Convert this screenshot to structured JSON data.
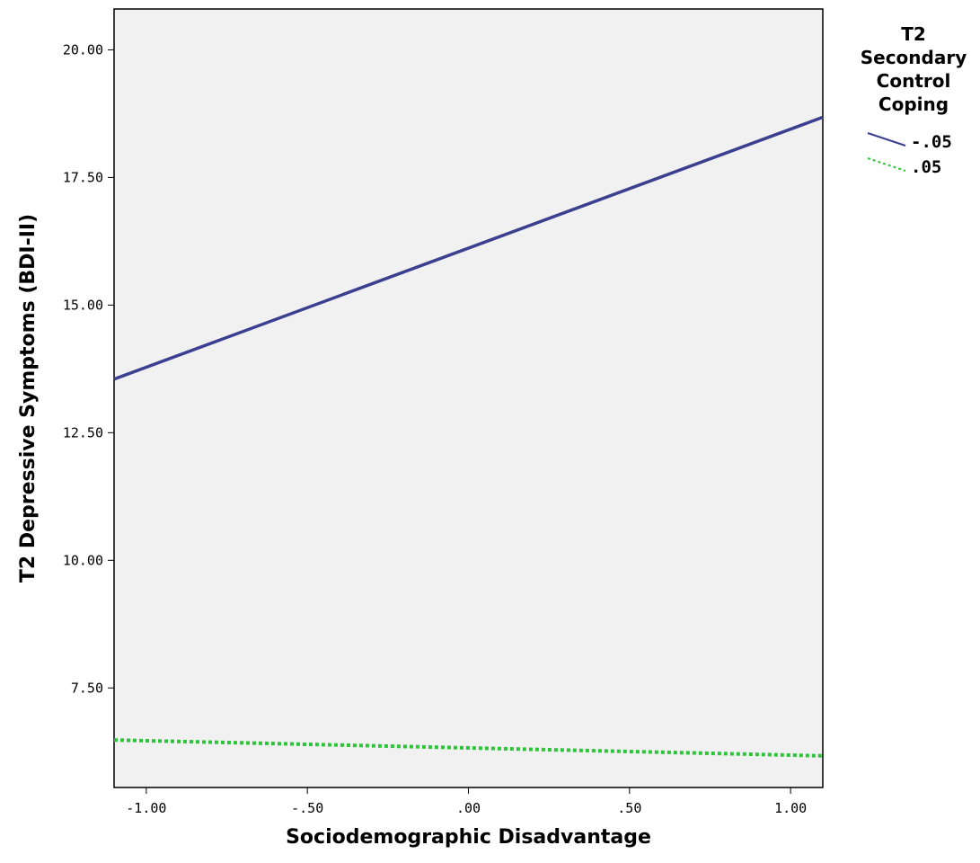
{
  "chart_data": {
    "type": "line",
    "xlabel": "Sociodemographic Disadvantage",
    "ylabel": "T2 Depressive Symptoms (BDI-II)",
    "xlim": [
      -1.1,
      1.1
    ],
    "ylim": [
      5.55,
      20.8
    ],
    "x_ticks": [
      -1.0,
      -0.5,
      0.0,
      0.5,
      1.0
    ],
    "x_tick_labels": [
      "-1.00",
      "-.50",
      ".00",
      ".50",
      "1.00"
    ],
    "y_ticks": [
      7.5,
      10.0,
      12.5,
      15.0,
      17.5,
      20.0
    ],
    "y_tick_labels": [
      "7.50",
      "10.00",
      "12.50",
      "15.00",
      "17.50",
      "20.00"
    ],
    "grid": false,
    "legend": {
      "title_lines": [
        "T2",
        "Secondary",
        "Control",
        "Coping"
      ],
      "placement": "right"
    },
    "series": [
      {
        "name": "-.05",
        "x": [
          -1.1,
          1.1
        ],
        "y": [
          13.55,
          18.68
        ],
        "color": "#3b3f8f",
        "style": "solid"
      },
      {
        "name": ".05",
        "x": [
          -1.1,
          1.1
        ],
        "y": [
          6.48,
          6.17
        ],
        "color": "#2ec43a",
        "style": "dotted"
      }
    ],
    "plot_background": "#f1f1f1"
  }
}
